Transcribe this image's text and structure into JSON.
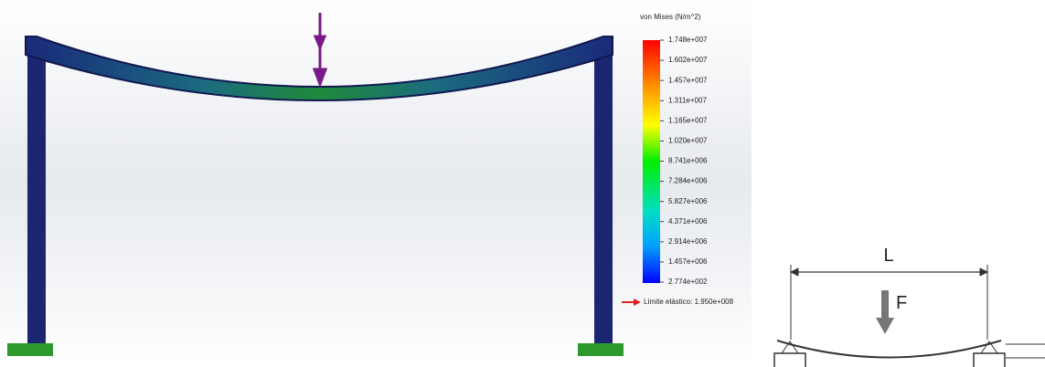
{
  "legend": {
    "title": "von Mises (N/m^2)",
    "labels": [
      "1.748e+007",
      "1.602e+007",
      "1.457e+007",
      "1.311e+007",
      "1.165e+007",
      "1.020e+007",
      "8.741e+006",
      "7.284e+006",
      "5.827e+006",
      "4.371e+006",
      "2.914e+006",
      "1.457e+006",
      "2.774e+002"
    ],
    "yield_label": "Límite elástico: 1.950e+008"
  },
  "diagram": {
    "length_label": "L",
    "force_label": "F"
  }
}
